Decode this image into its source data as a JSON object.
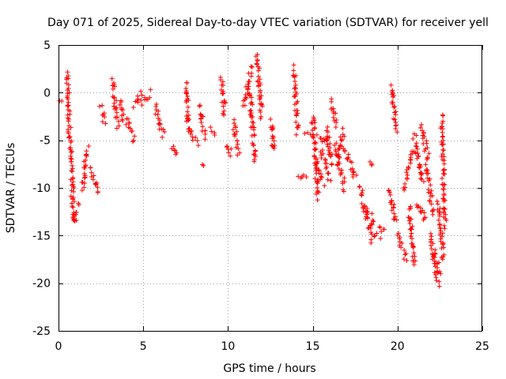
{
  "chart_data": {
    "type": "scatter",
    "title": "Day 071 of 2025, Sidereal Day-to-day VTEC variation (SDTVAR) for receiver yell",
    "xlabel": "GPS time / hours",
    "ylabel": "SDTVAR / TECUs",
    "xlim": [
      0,
      25
    ],
    "ylim": [
      -25,
      5
    ],
    "xticks": [
      0,
      5,
      10,
      15,
      20,
      25
    ],
    "yticks": [
      -25,
      -20,
      -15,
      -10,
      -5,
      0,
      5
    ],
    "xtick_labels": [
      "0",
      "5",
      "10",
      "15",
      "20",
      "25"
    ],
    "ytick_labels": [
      "-25",
      "-20",
      "-15",
      "-10",
      "-5",
      "0",
      "5"
    ],
    "grid": true,
    "marker": "+",
    "color": "#ff0000",
    "series": [
      {
        "name": "SDTVAR",
        "segments": [
          [
            0.1,
            -1.0,
            0.1,
            -1.0
          ],
          [
            0.5,
            2.0,
            0.9,
            -13.5
          ],
          [
            0.9,
            -13.5,
            1.2,
            -11.8
          ],
          [
            1.4,
            -10.0,
            1.7,
            -6.0
          ],
          [
            1.9,
            -8.0,
            2.3,
            -10.5
          ],
          [
            2.5,
            -1.5,
            2.7,
            -3.0
          ],
          [
            3.2,
            1.2,
            3.5,
            -3.5
          ],
          [
            3.6,
            -1.0,
            3.9,
            -3.0
          ],
          [
            4.0,
            -3.0,
            4.5,
            -5.0
          ],
          [
            4.5,
            -1.5,
            4.9,
            0.0
          ],
          [
            5.0,
            -1.0,
            5.5,
            0.0
          ],
          [
            5.7,
            -1.2,
            6.2,
            -4.5
          ],
          [
            6.7,
            -5.5,
            7.0,
            -6.5
          ],
          [
            7.5,
            1.0,
            7.7,
            -4.0
          ],
          [
            7.7,
            -4.0,
            8.2,
            -5.5
          ],
          [
            8.4,
            -1.5,
            8.6,
            -4.5
          ],
          [
            8.5,
            -7.5,
            8.5,
            -7.5
          ],
          [
            9.0,
            -4.0,
            9.3,
            -4.5
          ],
          [
            9.6,
            1.5,
            9.8,
            -2.5
          ],
          [
            9.9,
            -5.5,
            10.2,
            -6.5
          ],
          [
            10.3,
            -3.0,
            10.6,
            -6.5
          ],
          [
            10.9,
            -1.5,
            11.4,
            2.5
          ],
          [
            11.3,
            0.0,
            11.6,
            -7.0
          ],
          [
            11.7,
            4.0,
            12.0,
            -2.5
          ],
          [
            12.6,
            -3.0,
            12.7,
            -6.0
          ],
          [
            13.9,
            2.5,
            14.1,
            -4.0
          ],
          [
            14.2,
            -8.5,
            14.6,
            -9.0
          ],
          [
            14.6,
            -4.0,
            14.8,
            -4.0
          ],
          [
            15.0,
            -2.5,
            15.3,
            -11.0
          ],
          [
            15.1,
            -7.0,
            15.6,
            -9.5
          ],
          [
            15.3,
            -4.5,
            15.8,
            -5.5
          ],
          [
            15.5,
            -6.0,
            16.0,
            -9.0
          ],
          [
            15.8,
            -3.5,
            16.1,
            -7.5
          ],
          [
            16.1,
            -1.0,
            16.4,
            -3.5
          ],
          [
            16.3,
            -5.5,
            16.9,
            -10.0
          ],
          [
            16.4,
            -7.5,
            16.8,
            -4.0
          ],
          [
            16.9,
            -6.0,
            17.5,
            -9.0
          ],
          [
            17.8,
            -10.0,
            18.5,
            -15.0
          ],
          [
            18.0,
            -12.0,
            18.6,
            -13.5
          ],
          [
            18.3,
            -7.5,
            18.5,
            -7.8
          ],
          [
            18.5,
            -15.5,
            19.0,
            -15.0
          ],
          [
            18.9,
            -14.5,
            19.2,
            -14.0
          ],
          [
            19.5,
            -10.0,
            19.9,
            -13.5
          ],
          [
            19.7,
            0.5,
            19.9,
            -4.0
          ],
          [
            20.0,
            -15.0,
            20.5,
            -17.5
          ],
          [
            20.4,
            -10.0,
            20.9,
            -6.0
          ],
          [
            20.7,
            -12.0,
            21.0,
            -18.0
          ],
          [
            21.0,
            -4.5,
            21.5,
            -9.5
          ],
          [
            21.2,
            -11.5,
            21.6,
            -13.5
          ],
          [
            21.4,
            -3.5,
            21.8,
            -7.0
          ],
          [
            21.7,
            -7.5,
            22.1,
            -12.5
          ],
          [
            21.9,
            -15.0,
            22.4,
            -20.0
          ],
          [
            22.1,
            -16.5,
            22.5,
            -19.0
          ],
          [
            22.4,
            -11.5,
            22.7,
            -17.5
          ],
          [
            22.6,
            -2.5,
            22.8,
            -14.0
          ]
        ]
      }
    ]
  }
}
